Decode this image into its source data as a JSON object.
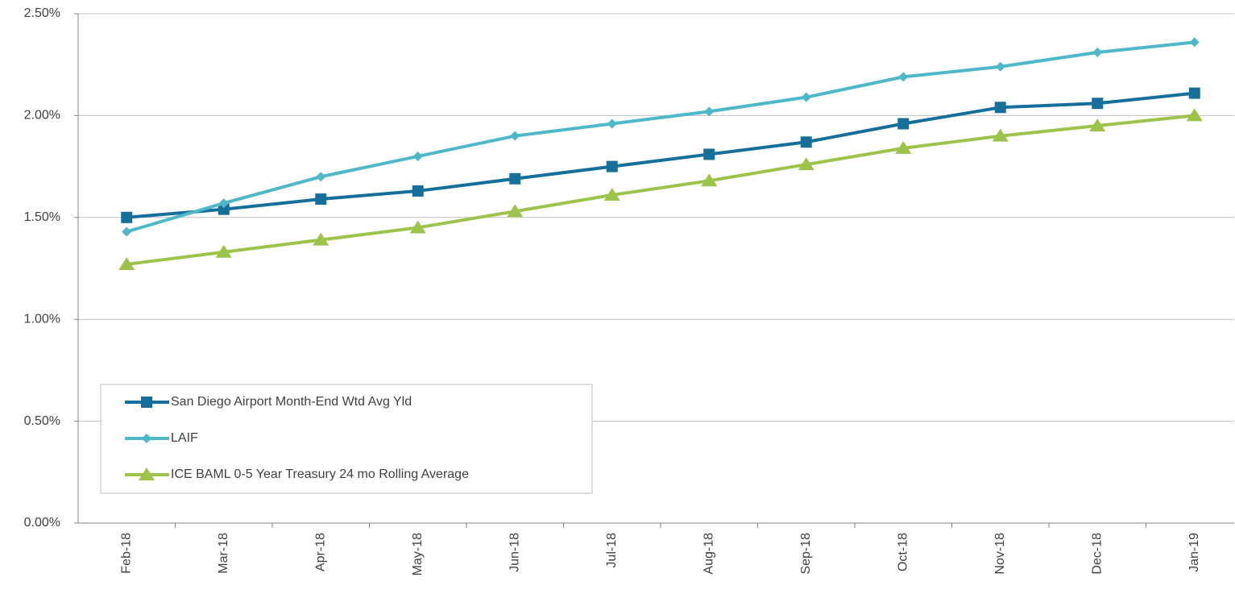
{
  "chart_data": {
    "type": "line",
    "categories": [
      "Feb-18",
      "Mar-18",
      "Apr-18",
      "May-18",
      "Jun-18",
      "Jul-18",
      "Aug-18",
      "Sep-18",
      "Oct-18",
      "Nov-18",
      "Dec-18",
      "Jan-19"
    ],
    "series": [
      {
        "name": "San Diego Airport Month-End Wtd Avg Yld",
        "color": "#14709a",
        "marker": "square",
        "values": [
          1.5,
          1.54,
          1.59,
          1.63,
          1.69,
          1.75,
          1.81,
          1.87,
          1.96,
          2.04,
          2.06,
          2.11
        ]
      },
      {
        "name": "LAIF",
        "color": "#4db8c8",
        "marker": "diamond",
        "values": [
          1.43,
          1.57,
          1.7,
          1.8,
          1.9,
          1.96,
          2.02,
          2.09,
          2.19,
          2.24,
          2.31,
          2.36
        ]
      },
      {
        "name": "ICE BAML 0-5 Year Treasury 24 mo Rolling Average",
        "color": "#9dc34a",
        "marker": "triangle",
        "values": [
          1.27,
          1.33,
          1.39,
          1.45,
          1.53,
          1.61,
          1.68,
          1.76,
          1.84,
          1.9,
          1.95,
          2.0
        ]
      }
    ],
    "ylim": [
      0,
      2.5
    ],
    "yticks": [
      {
        "value": 0,
        "label": "0.00%"
      },
      {
        "value": 0.5,
        "label": "0.50%"
      },
      {
        "value": 1,
        "label": "1.00%"
      },
      {
        "value": 1.5,
        "label": "1.50%"
      },
      {
        "value": 2,
        "label": "2.00%"
      },
      {
        "value": 2.5,
        "label": "2.50%"
      }
    ],
    "grid": true,
    "legend": "lower left"
  }
}
